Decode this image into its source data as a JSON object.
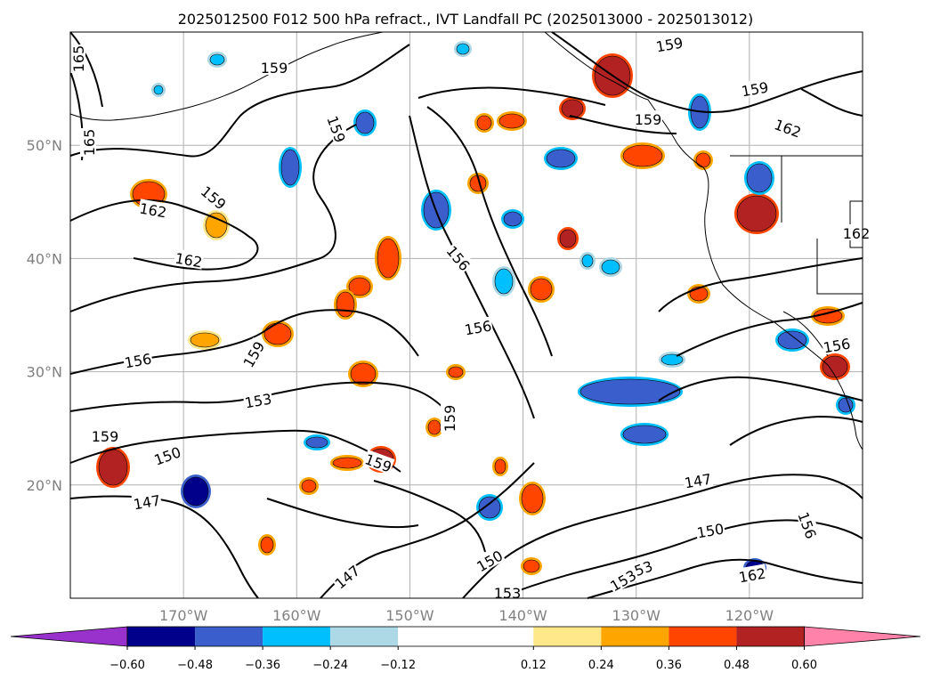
{
  "chart_data": {
    "type": "contour-map",
    "title": "2025012500 F012 500 hPa refract., IVT Landfall PC (2025013000 - 2025013012)",
    "xticks": [
      "170°W",
      "160°W",
      "150°W",
      "140°W",
      "130°W",
      "120°W"
    ],
    "yticks": [
      "50°N",
      "40°N",
      "30°N",
      "20°N"
    ],
    "lon_range": [
      -180,
      -110
    ],
    "lat_range": [
      10,
      60
    ],
    "grid": true,
    "colorbar": {
      "ticks": [
        "−0.60",
        "−0.48",
        "−0.36",
        "−0.24",
        "−0.12",
        "0.12",
        "0.24",
        "0.36",
        "0.48",
        "0.60"
      ],
      "tick_values": [
        -0.6,
        -0.48,
        -0.36,
        -0.24,
        -0.12,
        0.12,
        0.24,
        0.36,
        0.48,
        0.6
      ],
      "extend": "both",
      "colors": [
        "#9932cc",
        "#00008b",
        "#3a5fcd",
        "#00bfff",
        "#add8e6",
        "#ffffff",
        "#ffe88a",
        "#ffa500",
        "#ff4500",
        "#b22222",
        "#ff82ab"
      ]
    },
    "contour_labels": [
      "165",
      "165",
      "159",
      "159",
      "159",
      "159",
      "159",
      "159",
      "159",
      "159",
      "159",
      "159",
      "162",
      "162",
      "162",
      "162",
      "162",
      "156",
      "156",
      "156",
      "156",
      "156",
      "153",
      "153",
      "153",
      "153",
      "150",
      "150",
      "150",
      "147",
      "147",
      "147"
    ]
  }
}
